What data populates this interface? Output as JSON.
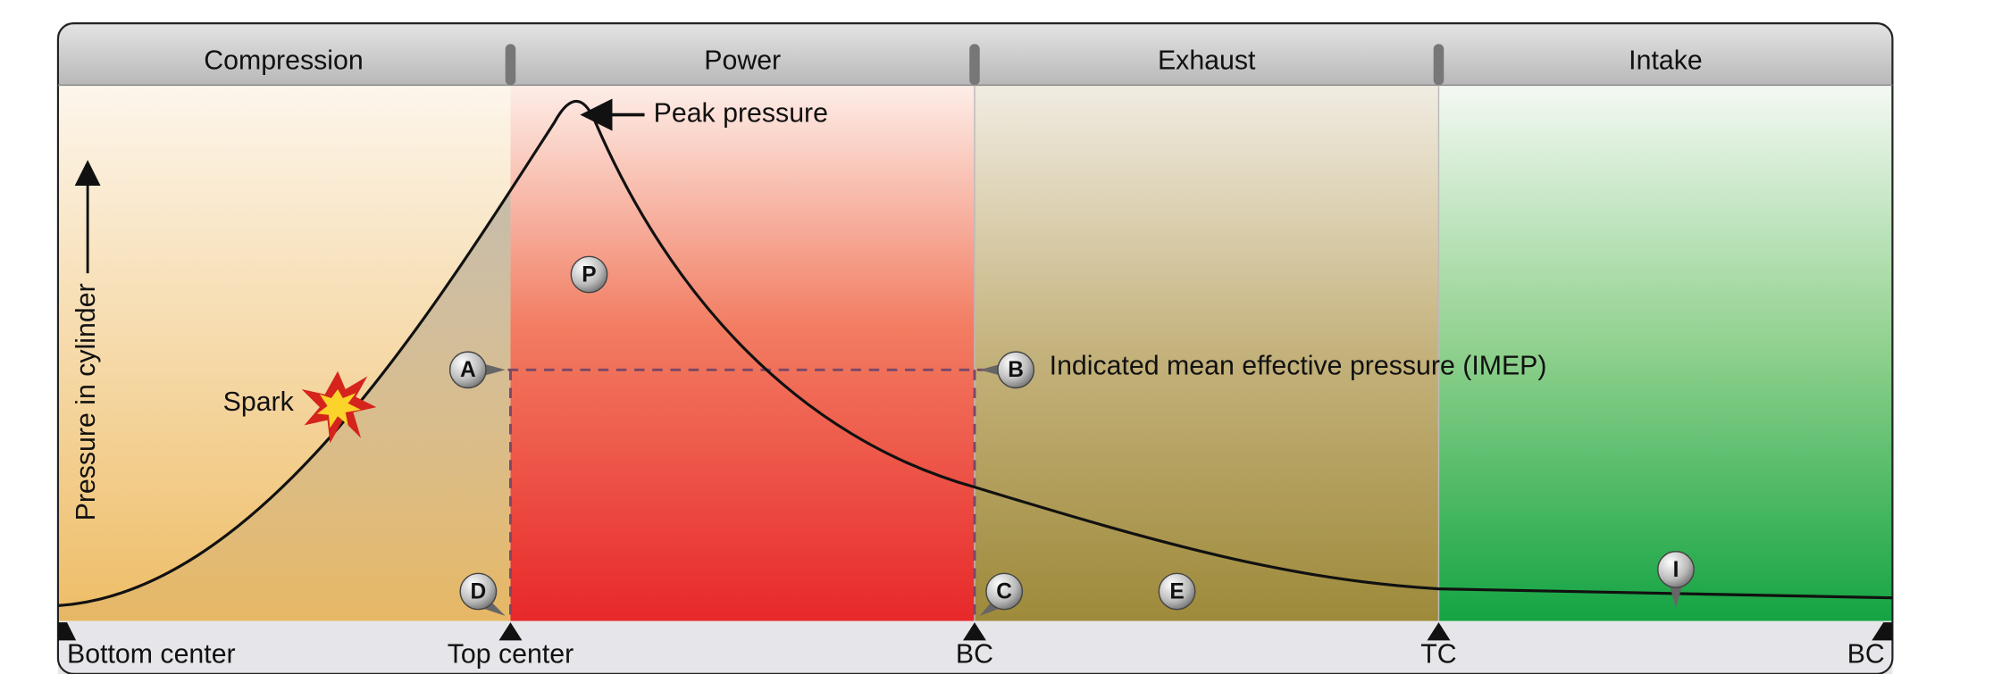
{
  "phases": [
    "Compression",
    "Power",
    "Exhaust",
    "Intake"
  ],
  "y_axis_label": "Pressure in cylinder",
  "annotations": {
    "peak": "Peak pressure",
    "spark": "Spark",
    "imep": "Indicated mean effective pressure (IMEP)"
  },
  "markers": [
    "P",
    "A",
    "B",
    "C",
    "D",
    "E",
    "I"
  ],
  "positions": [
    "Bottom center",
    "Top center",
    "BC",
    "TC",
    "BC"
  ]
}
